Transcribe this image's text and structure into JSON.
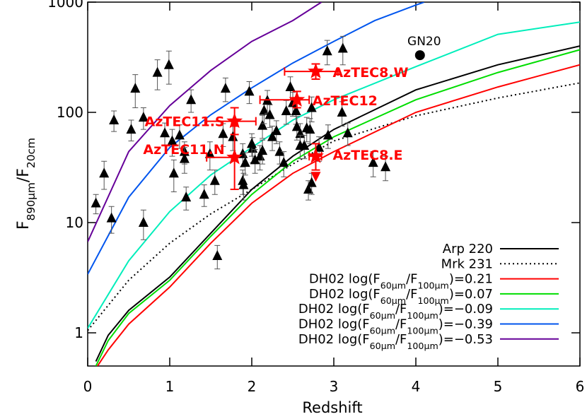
{
  "chart_data": {
    "type": "scatter",
    "log_y": true,
    "xlabel": "Redshift",
    "ylabel": [
      "F",
      "890μm",
      "/F",
      "20cm"
    ],
    "xlim": [
      0,
      6
    ],
    "xticks": [
      0,
      1,
      2,
      3,
      4,
      5,
      6
    ],
    "ylim": [
      0.5,
      1000
    ],
    "yticks": [
      1,
      10,
      100,
      1000
    ],
    "curves": [
      {
        "name": [
          "Arp 220"
        ],
        "color": "#000000",
        "dash": false,
        "x": [
          0.1,
          0.25,
          0.5,
          1,
          1.5,
          2,
          2.5,
          3,
          4,
          5,
          6
        ],
        "values": [
          0.55,
          0.95,
          1.6,
          3.2,
          8,
          20,
          40,
          70,
          160,
          270,
          400
        ]
      },
      {
        "name": [
          "Mrk 231"
        ],
        "color": "#000000",
        "dash": true,
        "x": [
          0,
          0.5,
          1,
          1.5,
          2,
          2.5,
          3,
          4,
          5,
          6
        ],
        "values": [
          1.05,
          3,
          6.5,
          12,
          20,
          34,
          55,
          93,
          135,
          185
        ]
      },
      {
        "name": [
          "DH02 log(F",
          "60μm",
          "/F",
          "100μm",
          ")=0.21"
        ],
        "color": "#ff0000",
        "dash": false,
        "x": [
          0.12,
          0.25,
          0.5,
          1,
          1.5,
          2,
          2.5,
          3,
          4,
          5,
          6
        ],
        "values": [
          0.5,
          0.7,
          1.2,
          2.6,
          6.5,
          15,
          28,
          44,
          100,
          170,
          270
        ]
      },
      {
        "name": [
          "DH02 log(F",
          "60μm",
          "/F",
          "100μm",
          ")=0.07"
        ],
        "color": "#00dd00",
        "dash": false,
        "x": [
          0.1,
          0.25,
          0.5,
          1,
          1.5,
          2,
          2.5,
          3,
          4,
          5,
          6
        ],
        "values": [
          0.5,
          0.85,
          1.5,
          3,
          7.5,
          18,
          36,
          60,
          130,
          230,
          370
        ]
      },
      {
        "name": [
          "DH02 log(F",
          "60μm",
          "/F",
          "100μm",
          ")=−0.09"
        ],
        "color": "#00eebb",
        "dash": false,
        "x": [
          0,
          0.5,
          1,
          1.5,
          2,
          2.5,
          3,
          4,
          5,
          6
        ],
        "values": [
          1.1,
          4.5,
          12.6,
          27,
          48,
          85,
          130,
          260,
          510,
          660
        ]
      },
      {
        "name": [
          "DH02 log(F",
          "60μm",
          "/F",
          "100μm",
          ")=−0.39"
        ],
        "color": "#0055ee",
        "dash": false,
        "x": [
          0,
          0.5,
          1,
          1.5,
          2,
          2.5,
          3,
          3.5,
          4,
          4.1
        ],
        "values": [
          3.4,
          17,
          48,
          95,
          167,
          280,
          440,
          680,
          940,
          1000
        ]
      },
      {
        "name": [
          "DH02 log(F",
          "60μm",
          "/F",
          "100μm",
          ")=−0.53"
        ],
        "color": "#660099",
        "dash": false,
        "x": [
          0,
          0.5,
          1,
          1.5,
          2,
          2.5,
          2.85
        ],
        "values": [
          6.7,
          44,
          115,
          240,
          440,
          680,
          1000
        ]
      }
    ],
    "triangles": {
      "color": "#000000",
      "x": [
        0.1,
        0.2,
        0.29,
        0.32,
        0.53,
        0.58,
        0.68,
        0.68,
        0.85,
        0.99,
        0.94,
        1.03,
        1.05,
        1.12,
        1.18,
        1.18,
        1.2,
        1.26,
        1.42,
        1.49,
        1.55,
        1.58,
        1.68,
        1.65,
        1.77,
        1.89,
        1.89,
        1.9,
        1.92,
        1.97,
        2.01,
        2.0,
        2.04,
        2.1,
        2.13,
        2.13,
        2.15,
        2.19,
        2.22,
        2.25,
        2.3,
        2.34,
        2.39,
        2.42,
        2.47,
        2.5,
        2.54,
        2.55,
        2.59,
        2.59,
        2.64,
        2.67,
        2.71,
        2.73,
        2.69,
        2.73,
        2.82,
        2.93,
        2.92,
        3.11,
        3.1,
        3.17,
        3.48,
        3.63
      ],
      "values": [
        15,
        28,
        11,
        85,
        70,
        165,
        90,
        10,
        230,
        270,
        65,
        55,
        28,
        62,
        44,
        38,
        17,
        130,
        18,
        42,
        24,
        5,
        165,
        64,
        60,
        42,
        24,
        22,
        35,
        155,
        47,
        52,
        37,
        40,
        45,
        76,
        104,
        128,
        95,
        60,
        68,
        44,
        35,
        103,
        170,
        122,
        103,
        74,
        64,
        50,
        50,
        72,
        70,
        110,
        20,
        23,
        48,
        62,
        360,
        380,
        100,
        65,
        35,
        32
      ],
      "errors": [
        3,
        8,
        3,
        18,
        15,
        55,
        20,
        3,
        70,
        90,
        15,
        15,
        9,
        15,
        10,
        10,
        4,
        30,
        4,
        12,
        6,
        1.2,
        40,
        15,
        15,
        10,
        6,
        6,
        8,
        35,
        12,
        12,
        9,
        10,
        11,
        18,
        25,
        30,
        22,
        15,
        16,
        10,
        9,
        25,
        40,
        30,
        25,
        18,
        15,
        12,
        12,
        18,
        18,
        28,
        4,
        5,
        12,
        15,
        90,
        110,
        25,
        15,
        9,
        8
      ]
    },
    "upper_limit": {
      "color": "#ff0000",
      "x": 2.78,
      "value": 26
    },
    "sources": [
      {
        "label": "AzTEC8.W",
        "x": 2.78,
        "value": 235,
        "x_err": [
          2.4,
          3.05
        ],
        "y_err": [
          200,
          275
        ]
      },
      {
        "label": "AzTEC12",
        "x": 2.55,
        "value": 130,
        "x_err": [
          2.1,
          2.7
        ],
        "y_err": [
          110,
          155
        ]
      },
      {
        "label": "AzTEC11.S",
        "x": 1.79,
        "value": 83,
        "x_err": [
          1.45,
          2.05
        ],
        "y_err": [
          63,
          110
        ]
      },
      {
        "label": "AzTEC11.N",
        "x": 1.79,
        "value": 39,
        "x_err": [
          1.45,
          1.79
        ],
        "y_err": [
          20,
          75
        ]
      },
      {
        "label": "AzTEC8.E",
        "x": 2.78,
        "value": 40,
        "x_err": [
          2.7,
          2.85
        ],
        "y_err": [
          30,
          52
        ]
      }
    ],
    "gn20": {
      "label": "GN20",
      "x": 4.05,
      "value": 330
    }
  }
}
